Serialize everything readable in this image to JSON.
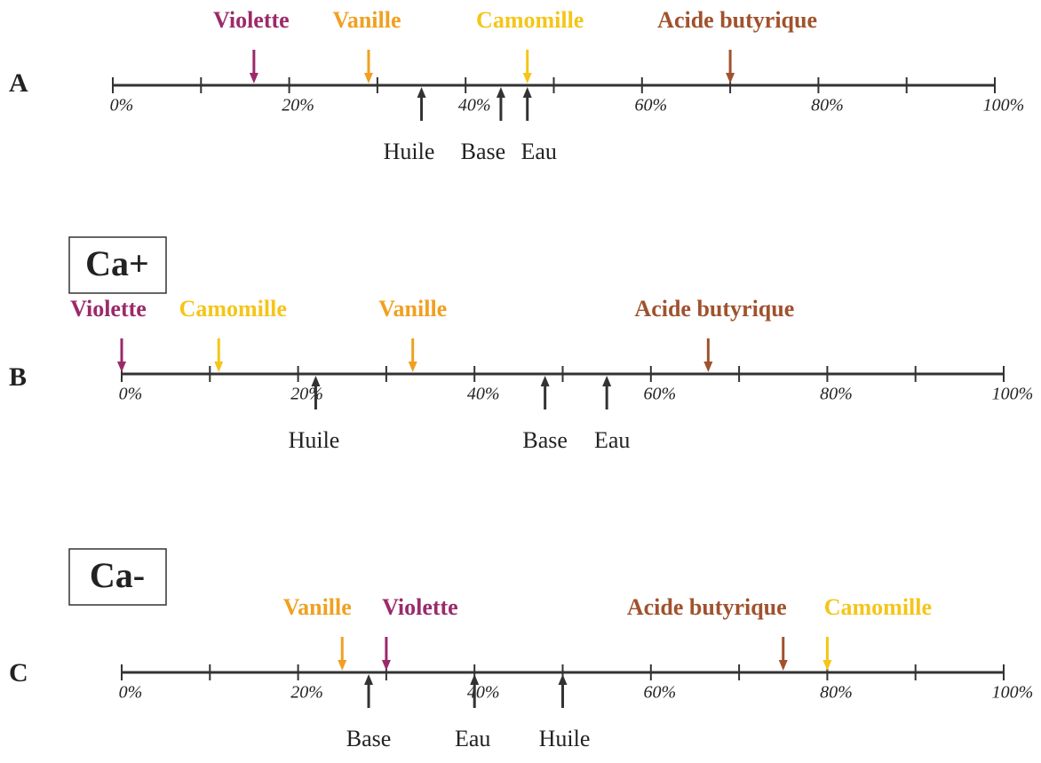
{
  "axis": {
    "lim": [
      0,
      100
    ],
    "ticks": [
      {
        "value": 0,
        "label": "0%"
      },
      10,
      {
        "value": 20,
        "label": "20%"
      },
      30,
      {
        "value": 40,
        "label": "40%"
      },
      50,
      {
        "value": 60,
        "label": "60%"
      },
      70,
      {
        "value": 80,
        "label": "80%"
      },
      90,
      {
        "value": 100,
        "label": "100%"
      }
    ]
  },
  "panels": [
    {
      "letter": "A",
      "above": [
        {
          "name": "Violette",
          "color": "#9b2a6b",
          "value": 16
        },
        {
          "name": "Vanille",
          "color": "#f0a020",
          "value": 29
        },
        {
          "name": "Camomille",
          "color": "#f5c518",
          "value": 47
        },
        {
          "name": "Acide butyrique",
          "color": "#a0522d",
          "value": 70
        }
      ],
      "below": [
        {
          "name": "Huile",
          "color": "#333333",
          "value": 35
        },
        {
          "name": "Base",
          "color": "#333333",
          "value": 44
        },
        {
          "name": "Eau",
          "color": "#333333",
          "value": 47
        }
      ]
    },
    {
      "letter": "B",
      "box": "Ca+",
      "above": [
        {
          "name": "Violette",
          "color": "#9b2a6b",
          "value": 0
        },
        {
          "name": "Camomille",
          "color": "#f5c518",
          "value": 11
        },
        {
          "name": "Vanille",
          "color": "#f0a020",
          "value": 33
        },
        {
          "name": "Acide butyrique",
          "color": "#a0522d",
          "value": 66.5
        }
      ],
      "below": [
        {
          "name": "Huile",
          "color": "#333333",
          "value": 22
        },
        {
          "name": "Base",
          "color": "#333333",
          "value": 48
        },
        {
          "name": "Eau",
          "color": "#333333",
          "value": 55
        }
      ]
    },
    {
      "letter": "C",
      "box": "Ca-",
      "above": [
        {
          "name": "Vanille",
          "color": "#f0a020",
          "value": 25
        },
        {
          "name": "Violette",
          "color": "#9b2a6b",
          "value": 30
        },
        {
          "name": "Acide butyrique",
          "color": "#a0522d",
          "value": 75
        },
        {
          "name": "Camomille",
          "color": "#f5c518",
          "value": 80
        }
      ],
      "below": [
        {
          "name": "Base",
          "color": "#333333",
          "value": 28
        },
        {
          "name": "Eau",
          "color": "#333333",
          "value": 40
        },
        {
          "name": "Huile",
          "color": "#333333",
          "value": 50
        }
      ]
    }
  ]
}
